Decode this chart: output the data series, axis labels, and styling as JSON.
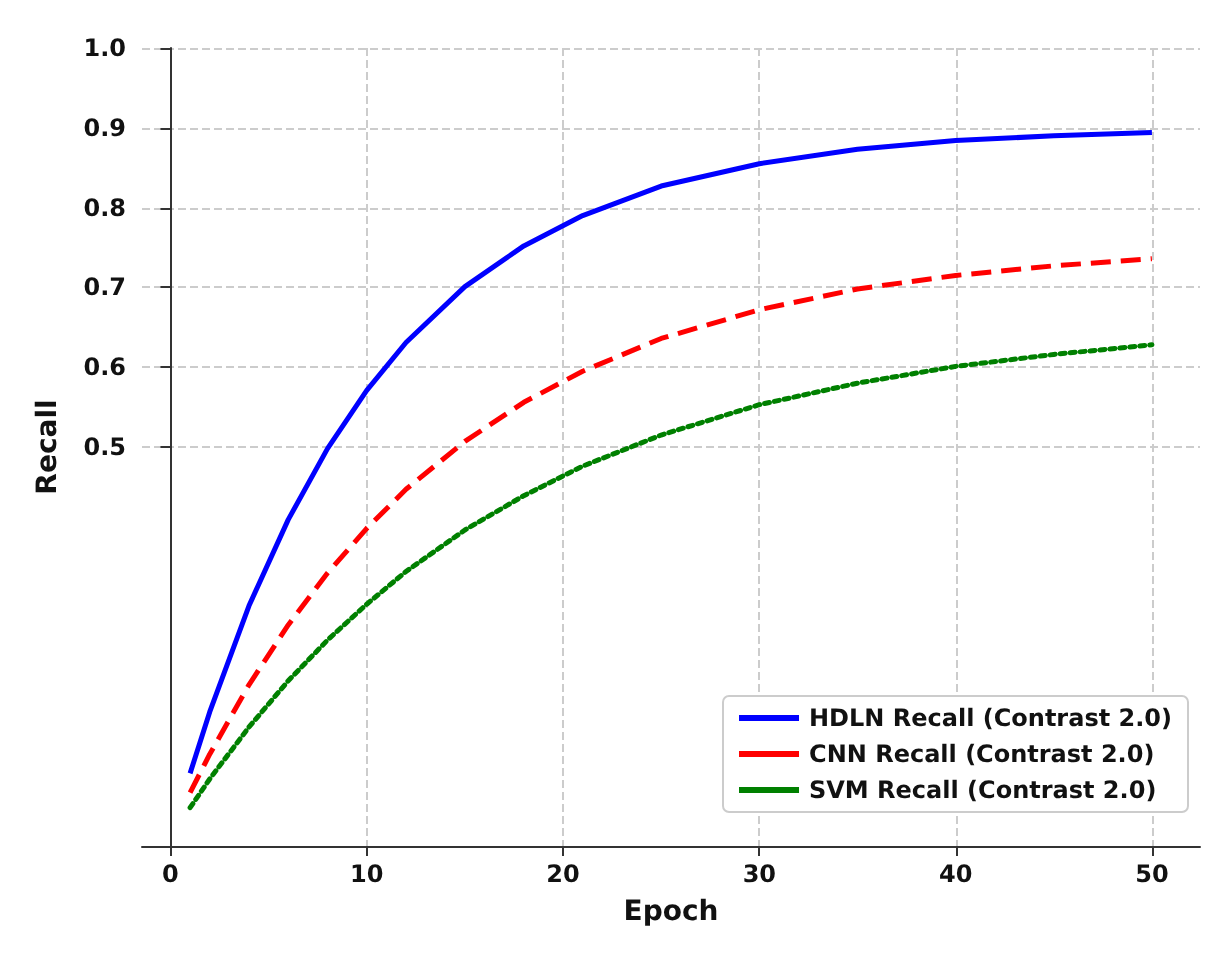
{
  "chart_data": {
    "type": "line",
    "xlabel": "Epoch",
    "ylabel": "Recall",
    "xlim": [
      -1.45,
      52.45
    ],
    "xticks": [
      0,
      10,
      20,
      30,
      40,
      50
    ],
    "ylim": [
      0,
      1.0
    ],
    "yticks": [
      0.5,
      0.6,
      0.7,
      0.8,
      0.9,
      {
        "value": 1,
        "label": "1.0"
      }
    ],
    "x": [
      1,
      2,
      4,
      6,
      8,
      10,
      12,
      15,
      18,
      21,
      25,
      30,
      35,
      40,
      45,
      50
    ],
    "series": [
      {
        "name": "HDLN Recall (Contrast 2.0)",
        "color": "#0000ff",
        "line_style": "solid",
        "values": [
          0.091,
          0.168,
          0.301,
          0.409,
          0.498,
          0.571,
          0.631,
          0.701,
          0.752,
          0.79,
          0.827,
          0.855,
          0.873,
          0.884,
          0.89,
          0.894
        ]
      },
      {
        "name": "CNN Recall (Contrast 2.0)",
        "color": "#ff0000",
        "line_style": "dashed",
        "values": [
          0.067,
          0.115,
          0.202,
          0.277,
          0.342,
          0.398,
          0.447,
          0.507,
          0.556,
          0.595,
          0.636,
          0.672,
          0.698,
          0.715,
          0.727,
          0.736
        ]
      },
      {
        "name": "SVM Recall (Contrast 2.0)",
        "color": "#008000",
        "line_style": "dotted",
        "values": [
          0.048,
          0.084,
          0.149,
          0.207,
          0.258,
          0.303,
          0.344,
          0.396,
          0.439,
          0.476,
          0.515,
          0.553,
          0.58,
          0.601,
          0.616,
          0.628
        ]
      }
    ],
    "grid": true,
    "legend": "bottom right",
    "marker": "none"
  }
}
